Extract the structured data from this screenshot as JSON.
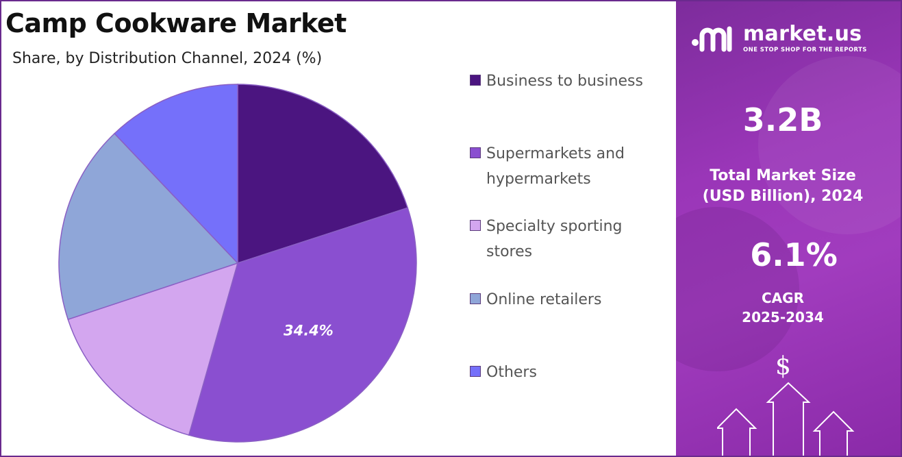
{
  "header": {
    "title": "Camp Cookware Market",
    "subtitle": "Share, by Distribution Channel, 2024 (%)"
  },
  "chart_data": {
    "type": "pie",
    "categories": [
      "Business to business",
      "Supermarkets and hypermarkets",
      "Specialty sporting stores",
      "Online retailers",
      "Others"
    ],
    "values": [
      20.0,
      34.4,
      15.5,
      18.0,
      12.1
    ],
    "colors": [
      "#4b1580",
      "#8a4fd0",
      "#d3a6ef",
      "#8fa6d8",
      "#7570fa"
    ],
    "data_labels": [
      "",
      "34.4%",
      "",
      "",
      ""
    ],
    "legend_position": "right",
    "start_angle_deg": 0,
    "direction": "clockwise"
  },
  "legend": {
    "items": [
      {
        "label_lines": [
          "Business to business"
        ],
        "color": "#4b1580"
      },
      {
        "label_lines": [
          "Supermarkets and",
          "hypermarkets"
        ],
        "color": "#8a4fd0"
      },
      {
        "label_lines": [
          "Specialty sporting",
          "stores"
        ],
        "color": "#d3a6ef"
      },
      {
        "label_lines": [
          "Online retailers"
        ],
        "color": "#8fa6d8"
      },
      {
        "label_lines": [
          "Others"
        ],
        "color": "#7570fa"
      }
    ]
  },
  "side_panel": {
    "brand_name": "market.us",
    "brand_tagline": "ONE STOP SHOP FOR THE REPORTS",
    "market_size_value": "3.2B",
    "market_size_label_line1": "Total Market Size",
    "market_size_label_line2": "(USD Billion), 2024",
    "cagr_value": "6.1%",
    "cagr_label_line1": "CAGR",
    "cagr_label_line2": "2025-2034",
    "currency_symbol": "$"
  }
}
